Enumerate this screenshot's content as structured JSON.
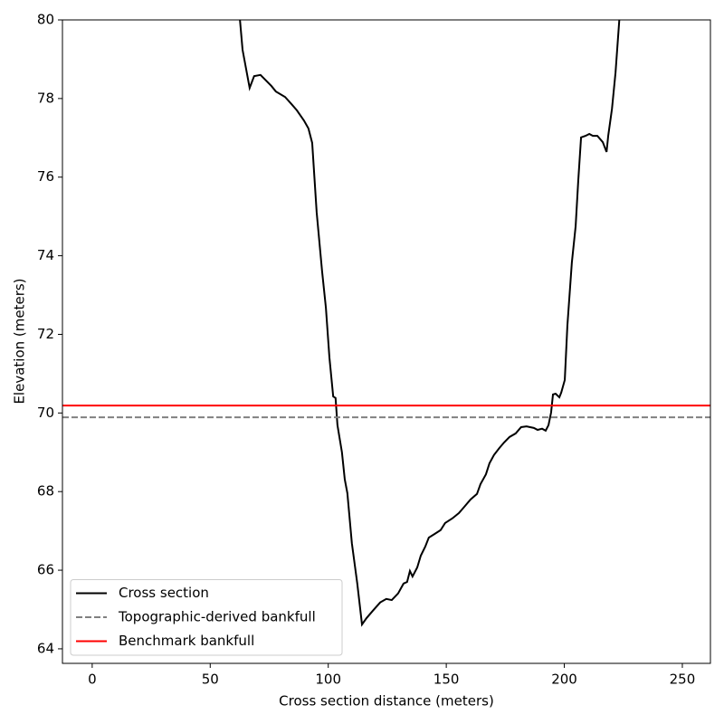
{
  "chart_data": {
    "type": "line",
    "xlabel": "Cross section distance (meters)",
    "ylabel": "Elevation (meters)",
    "xlim": [
      -12.6,
      261.9
    ],
    "ylim": [
      63.63,
      80
    ],
    "xticks": [
      0,
      50,
      100,
      150,
      200,
      250
    ],
    "yticks": [
      64,
      66,
      68,
      70,
      72,
      74,
      76,
      78,
      80
    ],
    "legend_loc": "lower left",
    "series": [
      {
        "name": "Cross section",
        "color": "#000000",
        "x": [
          62.6,
          63.7,
          66.7,
          68.6,
          71.3,
          75.9,
          77.8,
          81.7,
          84.4,
          86.7,
          89.7,
          91.6,
          93.2,
          95.1,
          97.4,
          99.0,
          100.5,
          102.1,
          103.1,
          103.9,
          105.8,
          107.0,
          108.1,
          110.0,
          112.3,
          114.3,
          116.2,
          118.9,
          122.0,
          124.6,
          126.9,
          129.6,
          131.9,
          133.4,
          134.6,
          135.7,
          137.7,
          139.2,
          141.1,
          142.6,
          145.0,
          147.6,
          149.5,
          152.6,
          155.3,
          157.6,
          160.3,
          163.0,
          164.5,
          166.8,
          168.3,
          170.2,
          172.5,
          174.5,
          176.8,
          179.4,
          181.7,
          184.0,
          187.1,
          188.7,
          190.6,
          192.1,
          193.3,
          194.4,
          195.2,
          196.3,
          197.9,
          198.7,
          200.2,
          201.3,
          203.2,
          204.8,
          205.9,
          207.1,
          209.0,
          210.6,
          212.1,
          214.0,
          216.3,
          217.9,
          218.6,
          220.2,
          221.7,
          223.3
        ],
        "values": [
          80,
          79.24,
          78.27,
          78.57,
          78.6,
          78.32,
          78.18,
          78.04,
          77.86,
          77.7,
          77.44,
          77.24,
          76.87,
          75.1,
          73.6,
          72.68,
          71.41,
          70.42,
          70.38,
          69.69,
          69.0,
          68.31,
          67.96,
          66.69,
          65.66,
          64.62,
          64.78,
          64.97,
          65.18,
          65.27,
          65.24,
          65.41,
          65.66,
          65.7,
          65.98,
          65.84,
          66.07,
          66.37,
          66.6,
          66.83,
          66.92,
          67.02,
          67.2,
          67.32,
          67.45,
          67.61,
          67.8,
          67.94,
          68.19,
          68.44,
          68.72,
          68.93,
          69.11,
          69.25,
          69.39,
          69.48,
          69.64,
          69.66,
          69.62,
          69.57,
          69.6,
          69.55,
          69.69,
          70.01,
          70.47,
          70.49,
          70.4,
          70.52,
          70.84,
          72.22,
          73.83,
          74.75,
          75.9,
          77.01,
          77.05,
          77.1,
          77.05,
          77.05,
          76.89,
          76.64,
          77.05,
          77.74,
          78.66,
          80
        ]
      }
    ],
    "hlines": [
      {
        "name": "Topographic-derived bankfull",
        "color": "#808080",
        "dashed": true,
        "value": 69.89
      },
      {
        "name": "Benchmark bankfull",
        "color": "#ff0000",
        "dashed": false,
        "value": 70.19
      }
    ]
  }
}
